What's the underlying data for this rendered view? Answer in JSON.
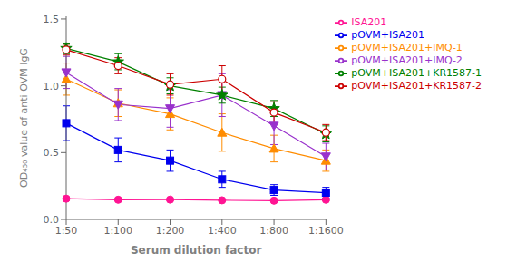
{
  "chart_data": {
    "type": "line",
    "xlabel": "Serum dilution factor",
    "ylabel": "OD₄₅₀ value of anti OVM IgG",
    "categories": [
      "1:50",
      "1:100",
      "1:200",
      "1:400",
      "1:800",
      "1:1600"
    ],
    "series": [
      {
        "name": "ISA201",
        "color": "#FF1493",
        "marker": "circle",
        "line_style": "solid",
        "values": [
          0.155,
          0.147,
          0.148,
          0.143,
          0.14,
          0.147
        ],
        "yerr": [
          0.013,
          0.008,
          0.008,
          0.008,
          0.008,
          0.008
        ]
      },
      {
        "name": "pOVM+ISA201",
        "color": "#0000EE",
        "marker": "square",
        "line_style": "solid",
        "values": [
          0.72,
          0.52,
          0.44,
          0.3,
          0.22,
          0.2
        ],
        "yerr": [
          0.13,
          0.09,
          0.08,
          0.06,
          0.04,
          0.04
        ]
      },
      {
        "name": "pOVM+ISA201+IMQ-1",
        "color": "#FF8C00",
        "marker": "triangle-up",
        "line_style": "solid",
        "values": [
          1.05,
          0.87,
          0.79,
          0.65,
          0.53,
          0.44
        ],
        "yerr": [
          0.12,
          0.1,
          0.12,
          0.14,
          0.1,
          0.08
        ]
      },
      {
        "name": "pOVM+ISA201+IMQ-2",
        "color": "#9932CC",
        "marker": "triangle-down",
        "line_style": "solid",
        "values": [
          1.1,
          0.86,
          0.83,
          0.93,
          0.7,
          0.47
        ],
        "yerr": [
          0.12,
          0.12,
          0.14,
          0.16,
          0.14,
          0.1
        ]
      },
      {
        "name": "pOVM+ISA201+KR1587-1",
        "color": "#008000",
        "marker": "star",
        "line_style": "solid",
        "values": [
          1.28,
          1.18,
          1.0,
          0.93,
          0.83,
          0.64
        ],
        "yerr": [
          0.04,
          0.06,
          0.06,
          0.06,
          0.06,
          0.06
        ]
      },
      {
        "name": "pOVM+ISA201+KR1587-2",
        "color": "#CC0000",
        "marker": "open-circle",
        "line_style": "solid",
        "values": [
          1.27,
          1.15,
          1.01,
          1.05,
          0.8,
          0.65
        ],
        "yerr": [
          0.04,
          0.06,
          0.08,
          0.1,
          0.08,
          0.06
        ]
      }
    ],
    "ylim": [
      0,
      1.52
    ],
    "yticks": [
      {
        "value": 0,
        "label": "0.0"
      },
      0.5,
      {
        "value": 1,
        "label": "1.0"
      },
      1.5
    ],
    "grid": false,
    "legend": "right"
  }
}
